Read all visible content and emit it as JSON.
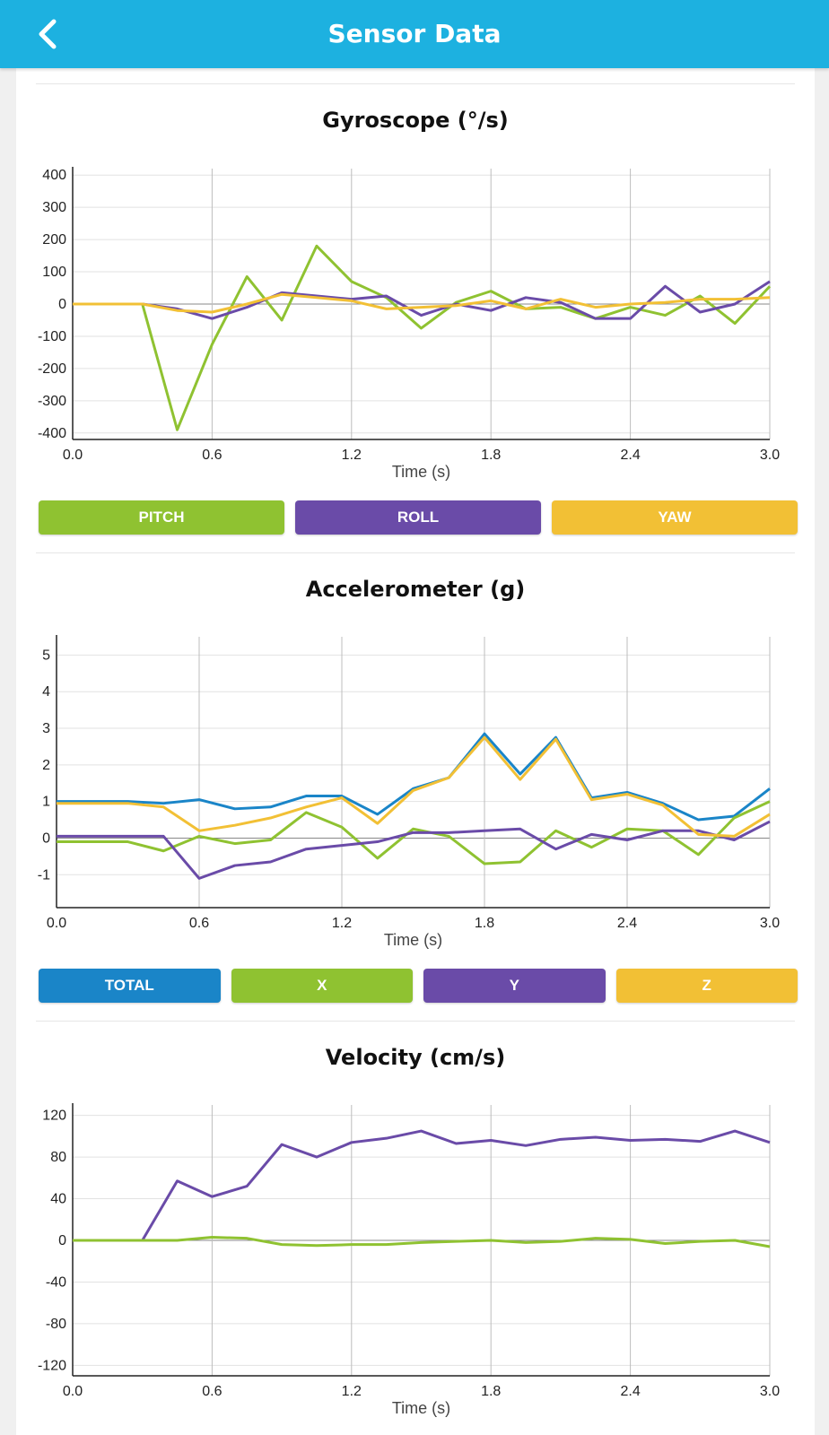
{
  "header": {
    "title": "Sensor Data",
    "back_icon": "chevron-left-icon",
    "color": "#1db1e0"
  },
  "chart_data": [
    {
      "type": "line",
      "title": "Gyroscope (°/s)",
      "xlabel": "Time (s)",
      "x": [
        0.0,
        0.15,
        0.3,
        0.45,
        0.6,
        0.75,
        0.9,
        1.05,
        1.2,
        1.35,
        1.5,
        1.65,
        1.8,
        1.95,
        2.1,
        2.25,
        2.4,
        2.55,
        2.7,
        2.85,
        3.0
      ],
      "xticks": [
        "0.0",
        "0.6",
        "1.2",
        "1.8",
        "2.4",
        "3.0"
      ],
      "xlim": [
        0,
        3.0
      ],
      "ylim": [
        -420,
        420
      ],
      "yticks": [
        400,
        300,
        200,
        100,
        0,
        -100,
        -200,
        -300,
        -400
      ],
      "grid": true,
      "series": [
        {
          "name": "PITCH",
          "color": "#8fc231",
          "values": [
            0,
            0,
            0,
            -390,
            -125,
            85,
            -50,
            180,
            70,
            20,
            -75,
            5,
            40,
            -15,
            -10,
            -45,
            -10,
            -35,
            25,
            -60,
            55
          ]
        },
        {
          "name": "ROLL",
          "color": "#6a4ba8",
          "values": [
            0,
            0,
            0,
            -15,
            -45,
            -10,
            35,
            25,
            15,
            25,
            -35,
            0,
            -20,
            20,
            5,
            -45,
            -45,
            55,
            -25,
            0,
            70
          ]
        },
        {
          "name": "YAW",
          "color": "#f2c035",
          "values": [
            0,
            0,
            0,
            -20,
            -25,
            0,
            30,
            20,
            10,
            -15,
            -10,
            -5,
            10,
            -15,
            15,
            -10,
            0,
            5,
            15,
            15,
            20
          ]
        }
      ]
    },
    {
      "type": "line",
      "title": "Accelerometer (g)",
      "xlabel": "Time (s)",
      "x": [
        0.0,
        0.15,
        0.3,
        0.45,
        0.6,
        0.75,
        0.9,
        1.05,
        1.2,
        1.35,
        1.5,
        1.65,
        1.8,
        1.95,
        2.1,
        2.25,
        2.4,
        2.55,
        2.7,
        2.85,
        3.0
      ],
      "xticks": [
        "0.0",
        "0.6",
        "1.2",
        "1.8",
        "2.4",
        "3.0"
      ],
      "xlim": [
        0,
        3.0
      ],
      "ylim": [
        -1.9,
        5.5
      ],
      "yticks": [
        5,
        4,
        3,
        2,
        1,
        0,
        -1
      ],
      "grid": true,
      "series": [
        {
          "name": "TOTAL",
          "color": "#1a85c8",
          "values": [
            1.0,
            1.0,
            1.0,
            0.95,
            1.05,
            0.8,
            0.85,
            1.15,
            1.15,
            0.65,
            1.35,
            1.65,
            2.85,
            1.75,
            2.75,
            1.1,
            1.25,
            0.95,
            0.5,
            0.6,
            1.35
          ]
        },
        {
          "name": "X",
          "color": "#8fc231",
          "values": [
            -0.1,
            -0.1,
            -0.1,
            -0.35,
            0.05,
            -0.15,
            -0.05,
            0.7,
            0.3,
            -0.55,
            0.25,
            0.05,
            -0.7,
            -0.65,
            0.2,
            -0.25,
            0.25,
            0.2,
            -0.45,
            0.55,
            1.0
          ]
        },
        {
          "name": "Y",
          "color": "#6a4ba8",
          "values": [
            0.05,
            0.05,
            0.05,
            0.05,
            -1.1,
            -0.75,
            -0.65,
            -0.3,
            -0.2,
            -0.1,
            0.15,
            0.15,
            0.2,
            0.25,
            -0.3,
            0.1,
            -0.05,
            0.2,
            0.2,
            -0.05,
            0.45
          ]
        },
        {
          "name": "Z",
          "color": "#f2c035",
          "values": [
            0.95,
            0.95,
            0.95,
            0.85,
            0.2,
            0.35,
            0.55,
            0.85,
            1.1,
            0.4,
            1.3,
            1.65,
            2.75,
            1.6,
            2.7,
            1.05,
            1.2,
            0.9,
            0.1,
            0.05,
            0.65
          ]
        }
      ]
    },
    {
      "type": "line",
      "title": "Velocity (cm/s)",
      "xlabel": "Time (s)",
      "x": [
        0.0,
        0.15,
        0.3,
        0.45,
        0.6,
        0.75,
        0.9,
        1.05,
        1.2,
        1.35,
        1.5,
        1.65,
        1.8,
        1.95,
        2.1,
        2.25,
        2.4,
        2.55,
        2.7,
        2.85,
        3.0
      ],
      "xticks": [
        "0.0",
        "0.6",
        "1.2",
        "1.8",
        "2.4",
        "3.0"
      ],
      "xlim": [
        0,
        3.0
      ],
      "ylim": [
        -130,
        130
      ],
      "yticks": [
        120,
        80,
        40,
        0,
        -40,
        -80,
        -120
      ],
      "grid": true,
      "series": [
        {
          "color": "#6a4ba8",
          "values": [
            0,
            0,
            0,
            57,
            42,
            52,
            92,
            80,
            94,
            98,
            105,
            93,
            96,
            91,
            97,
            99,
            96,
            97,
            95,
            105,
            94
          ]
        },
        {
          "color": "#8fc231",
          "values": [
            0,
            0,
            0,
            0,
            3,
            2,
            -4,
            -5,
            -4,
            -4,
            -2,
            -1,
            0,
            -2,
            -1,
            2,
            1,
            -3,
            -1,
            0,
            -6
          ]
        }
      ]
    }
  ],
  "legends": {
    "gyro": [
      {
        "label": "PITCH",
        "color": "#8fc231"
      },
      {
        "label": "ROLL",
        "color": "#6a4ba8"
      },
      {
        "label": "YAW",
        "color": "#f2c035"
      }
    ],
    "accel": [
      {
        "label": "TOTAL",
        "color": "#1a85c8"
      },
      {
        "label": "X",
        "color": "#8fc231"
      },
      {
        "label": "Y",
        "color": "#6a4ba8"
      },
      {
        "label": "Z",
        "color": "#f2c035"
      }
    ]
  }
}
